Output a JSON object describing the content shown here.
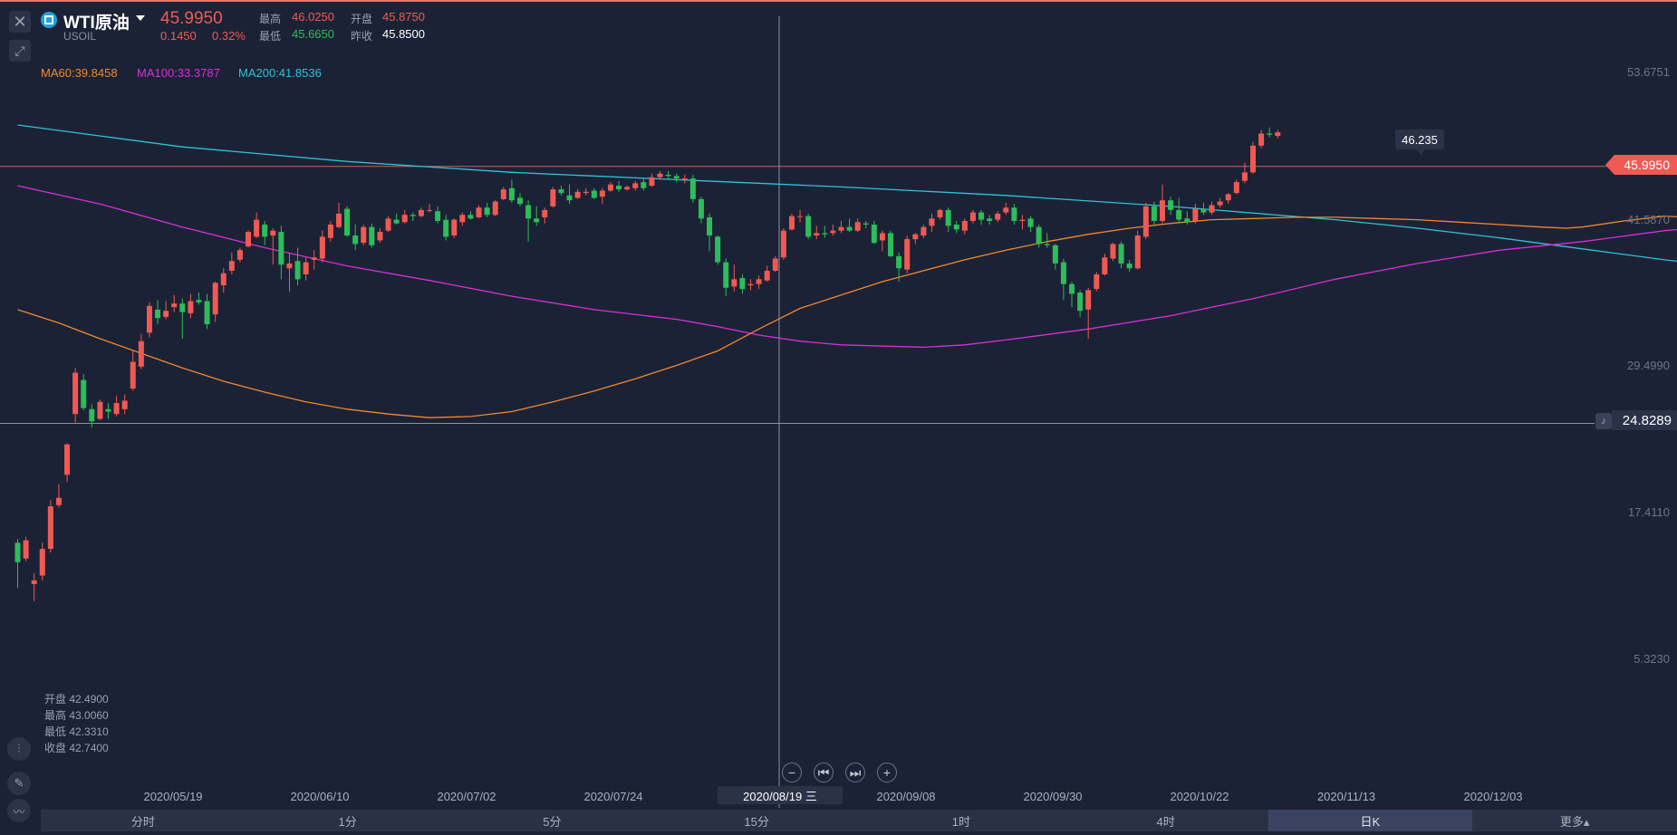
{
  "header": {
    "symbol_name": "WTI原油",
    "symbol_code": "USOIL",
    "price": "45.9950",
    "change": "0.1450",
    "change_pct": "0.32%",
    "high_label": "最高",
    "high_value": "46.0250",
    "open_label": "开盘",
    "open_value": "45.8750",
    "low_label": "最低",
    "low_value": "45.6650",
    "prev_close_label": "昨收",
    "prev_close_value": "45.8500"
  },
  "ma_legend": [
    {
      "text": "MA60:39.8458",
      "color": "#f0882f"
    },
    {
      "text": "MA100:33.3787",
      "color": "#d630d6"
    },
    {
      "text": "MA200:41.8536",
      "color": "#2fc2d6"
    }
  ],
  "ohlc_panel": {
    "open": "开盘 42.4900",
    "high": "最高 43.0060",
    "low": "最低 42.3310",
    "close": "收盘 42.7400"
  },
  "crosshair": {
    "date": "2020/08/19 三",
    "price": "24.8289"
  },
  "last_price_tag": "45.9950",
  "high_marker": "46.235",
  "periods": [
    {
      "label": "分时",
      "active": false
    },
    {
      "label": "1分",
      "active": false
    },
    {
      "label": "5分",
      "active": false
    },
    {
      "label": "15分",
      "active": false
    },
    {
      "label": "1时",
      "active": false
    },
    {
      "label": "4时",
      "active": false
    },
    {
      "label": "日K",
      "active": true
    },
    {
      "label": "更多▴",
      "active": false
    }
  ],
  "colors": {
    "up": "#ef5a53",
    "down": "#2dbd5a",
    "background": "#1c2235"
  },
  "icons": [
    "close-icon",
    "expand-icon",
    "symbol-icon",
    "caret-down-icon",
    "bell-icon",
    "zoom-out-icon",
    "step-back-icon",
    "step-forward-icon",
    "zoom-in-icon",
    "indicator-icon",
    "pencil-icon",
    "chart-type-icon"
  ],
  "chart_data": {
    "type": "candlestick",
    "y_ticks": [
      "53.6751",
      "41.5870",
      "29.4990",
      "17.4110",
      "5.3230"
    ],
    "ylim": [
      0.5,
      59.0
    ],
    "x_ticks": [
      "2020/05/19",
      "2020/06/10",
      "2020/07/02",
      "2020/07/24",
      "2020/09/08",
      "2020/09/30",
      "2020/10/22",
      "2020/11/13",
      "2020/12/03"
    ],
    "candles": [
      [
        15.0,
        13.4,
        15.3,
        11.3
      ],
      [
        13.7,
        15.2,
        15.5,
        13.5
      ],
      [
        11.6,
        11.9,
        12.5,
        10.2
      ],
      [
        12.3,
        14.5,
        15.0,
        11.9
      ],
      [
        14.5,
        18.0,
        18.5,
        14.2
      ],
      [
        18.1,
        18.7,
        19.8,
        17.9
      ],
      [
        20.6,
        23.1,
        23.2,
        20.0
      ],
      [
        25.6,
        29.0,
        29.4,
        24.9
      ],
      [
        28.4,
        26.1,
        28.9,
        25.9
      ],
      [
        26.0,
        25.0,
        26.4,
        24.5
      ],
      [
        25.2,
        26.6,
        26.8,
        25.1
      ],
      [
        26.0,
        25.8,
        26.5,
        25.2
      ],
      [
        25.6,
        26.5,
        27.1,
        25.4
      ],
      [
        26.0,
        26.7,
        27.2,
        25.6
      ],
      [
        27.7,
        29.9,
        30.8,
        27.5
      ],
      [
        29.5,
        31.6,
        32.2,
        29.3
      ],
      [
        32.3,
        34.5,
        34.8,
        31.9
      ],
      [
        34.2,
        33.5,
        35.0,
        33.0
      ],
      [
        33.6,
        34.1,
        34.9,
        33.4
      ],
      [
        34.4,
        34.7,
        35.4,
        34.0
      ],
      [
        34.7,
        34.0,
        35.1,
        31.8
      ],
      [
        33.9,
        34.9,
        35.5,
        33.5
      ],
      [
        35.0,
        34.8,
        35.6,
        34.6
      ],
      [
        34.9,
        33.0,
        35.5,
        32.6
      ],
      [
        33.8,
        36.4,
        36.5,
        33.2
      ],
      [
        36.2,
        37.2,
        37.6,
        35.6
      ],
      [
        37.4,
        38.2,
        38.9,
        37.1
      ],
      [
        38.3,
        39.1,
        39.3,
        38.1
      ],
      [
        39.4,
        40.6,
        40.7,
        39.3
      ],
      [
        40.2,
        41.6,
        42.2,
        40.1
      ],
      [
        41.2,
        40.2,
        41.5,
        39.5
      ],
      [
        40.3,
        40.7,
        40.9,
        37.9
      ],
      [
        40.6,
        37.9,
        41.1,
        36.7
      ],
      [
        37.6,
        38.0,
        38.9,
        35.7
      ],
      [
        38.2,
        36.7,
        39.3,
        36.2
      ],
      [
        37.1,
        38.1,
        38.5,
        36.6
      ],
      [
        38.3,
        38.5,
        39.1,
        37.5
      ],
      [
        38.4,
        40.2,
        40.7,
        38.1
      ],
      [
        40.1,
        41.2,
        41.5,
        39.8
      ],
      [
        41.0,
        42.1,
        43.0,
        40.9
      ],
      [
        42.5,
        40.3,
        42.7,
        40.2
      ],
      [
        40.3,
        39.6,
        41.2,
        39.1
      ],
      [
        39.7,
        41.0,
        41.2,
        39.5
      ],
      [
        41.0,
        39.5,
        41.3,
        39.3
      ],
      [
        39.9,
        40.6,
        40.9,
        39.7
      ],
      [
        40.7,
        41.7,
        41.9,
        40.6
      ],
      [
        41.6,
        41.3,
        42.1,
        41.2
      ],
      [
        41.4,
        42.0,
        42.4,
        41.3
      ],
      [
        42.0,
        41.9,
        42.2,
        41.5
      ],
      [
        41.9,
        42.4,
        42.6,
        41.8
      ],
      [
        42.4,
        42.4,
        42.9,
        42.2
      ],
      [
        42.3,
        41.5,
        42.7,
        41.3
      ],
      [
        41.6,
        40.2,
        42.0,
        39.9
      ],
      [
        40.3,
        41.6,
        41.7,
        40.1
      ],
      [
        41.4,
        42.0,
        42.2,
        41.1
      ],
      [
        42.0,
        41.7,
        42.3,
        41.6
      ],
      [
        41.8,
        42.6,
        42.8,
        41.7
      ],
      [
        42.6,
        42.0,
        43.0,
        41.8
      ],
      [
        42.0,
        43.1,
        43.2,
        41.9
      ],
      [
        43.3,
        44.1,
        44.3,
        43.2
      ],
      [
        44.2,
        43.2,
        44.9,
        43.0
      ],
      [
        43.4,
        42.9,
        43.8,
        42.7
      ],
      [
        42.8,
        41.7,
        43.2,
        39.8
      ],
      [
        41.7,
        41.4,
        42.7,
        41.1
      ],
      [
        41.8,
        42.4,
        42.6,
        41.3
      ],
      [
        42.7,
        44.1,
        44.3,
        42.6
      ],
      [
        44.1,
        43.8,
        44.4,
        43.6
      ],
      [
        43.6,
        43.2,
        44.5,
        42.9
      ],
      [
        43.4,
        43.9,
        44.1,
        43.3
      ],
      [
        43.8,
        43.9,
        44.2,
        43.6
      ],
      [
        44.0,
        43.4,
        44.2,
        43.3
      ],
      [
        43.5,
        44.0,
        44.2,
        42.9
      ],
      [
        44.0,
        44.5,
        44.7,
        43.9
      ],
      [
        44.4,
        44.1,
        44.8,
        43.9
      ],
      [
        44.1,
        44.3,
        44.4,
        44.0
      ],
      [
        44.2,
        44.6,
        44.8,
        44.0
      ],
      [
        44.7,
        44.2,
        45.0,
        44.0
      ],
      [
        44.4,
        45.1,
        45.4,
        44.3
      ],
      [
        45.1,
        45.4,
        45.6,
        44.9
      ],
      [
        45.3,
        45.2,
        45.6,
        44.9
      ],
      [
        45.2,
        45.0,
        45.4,
        44.7
      ],
      [
        44.9,
        45.0,
        45.3,
        44.6
      ],
      [
        45.0,
        43.3,
        45.3,
        43.0
      ],
      [
        43.3,
        41.7,
        43.5,
        41.3
      ],
      [
        41.8,
        40.3,
        42.1,
        39.0
      ],
      [
        40.2,
        38.1,
        40.3,
        37.9
      ],
      [
        38.1,
        36.0,
        38.4,
        35.3
      ],
      [
        36.1,
        36.7,
        37.9,
        35.7
      ],
      [
        36.8,
        35.9,
        37.1,
        35.5
      ],
      [
        36.2,
        36.3,
        36.7,
        35.8
      ],
      [
        36.3,
        36.7,
        37.0,
        35.9
      ],
      [
        36.6,
        37.4,
        37.8,
        36.5
      ],
      [
        37.4,
        38.4,
        38.6,
        37.3
      ],
      [
        38.5,
        40.7,
        40.9,
        38.3
      ],
      [
        40.8,
        41.9,
        42.1,
        40.7
      ],
      [
        41.9,
        41.9,
        42.4,
        41.4
      ],
      [
        41.9,
        40.2,
        42.1,
        40.0
      ],
      [
        40.3,
        40.5,
        41.1,
        40.0
      ],
      [
        40.5,
        40.4,
        41.1,
        40.1
      ],
      [
        40.5,
        40.7,
        41.2,
        40.3
      ],
      [
        40.7,
        41.0,
        41.5,
        40.5
      ],
      [
        41.0,
        40.7,
        41.7,
        40.6
      ],
      [
        40.7,
        41.4,
        41.7,
        40.6
      ],
      [
        41.3,
        41.2,
        41.5,
        40.9
      ],
      [
        41.2,
        39.7,
        41.5,
        39.6
      ],
      [
        39.9,
        40.5,
        40.7,
        39.0
      ],
      [
        40.5,
        38.6,
        40.7,
        38.5
      ],
      [
        38.6,
        37.6,
        38.9,
        36.5
      ],
      [
        37.5,
        40.0,
        40.3,
        37.2
      ],
      [
        40.0,
        40.4,
        40.5,
        39.6
      ],
      [
        40.3,
        41.0,
        41.2,
        40.1
      ],
      [
        41.1,
        41.7,
        42.1,
        40.6
      ],
      [
        41.8,
        42.4,
        42.5,
        41.6
      ],
      [
        42.4,
        41.1,
        42.6,
        40.6
      ],
      [
        41.2,
        40.8,
        41.5,
        40.5
      ],
      [
        40.7,
        41.5,
        41.7,
        40.4
      ],
      [
        41.5,
        42.2,
        42.4,
        41.3
      ],
      [
        42.2,
        41.6,
        42.4,
        41.2
      ],
      [
        41.7,
        41.5,
        42.0,
        41.2
      ],
      [
        41.6,
        42.1,
        42.3,
        41.4
      ],
      [
        42.2,
        42.6,
        43.0,
        42.0
      ],
      [
        42.6,
        41.5,
        42.9,
        41.2
      ],
      [
        41.5,
        41.6,
        42.0,
        40.8
      ],
      [
        41.7,
        41.0,
        41.9,
        40.6
      ],
      [
        41.0,
        39.6,
        41.2,
        39.3
      ],
      [
        39.6,
        39.5,
        40.5,
        39.3
      ],
      [
        39.5,
        38.0,
        39.6,
        37.5
      ],
      [
        38.1,
        36.3,
        38.4,
        35.0
      ],
      [
        36.3,
        35.5,
        36.5,
        34.4
      ],
      [
        35.6,
        34.1,
        35.8,
        33.6
      ],
      [
        34.2,
        35.8,
        36.0,
        31.8
      ],
      [
        35.9,
        37.1,
        37.3,
        35.7
      ],
      [
        37.1,
        38.5,
        38.8,
        37.0
      ],
      [
        38.4,
        39.6,
        39.7,
        38.2
      ],
      [
        39.6,
        38.0,
        39.8,
        37.6
      ],
      [
        38.0,
        37.6,
        38.3,
        37.3
      ],
      [
        37.6,
        40.3,
        40.7,
        37.5
      ],
      [
        40.2,
        42.7,
        43.0,
        40.0
      ],
      [
        42.7,
        41.5,
        43.1,
        41.1
      ],
      [
        41.5,
        43.2,
        44.5,
        41.3
      ],
      [
        43.2,
        42.4,
        43.5,
        42.0
      ],
      [
        42.4,
        41.6,
        43.4,
        41.3
      ],
      [
        41.7,
        41.4,
        42.3,
        41.2
      ],
      [
        41.5,
        42.5,
        42.9,
        41.3
      ],
      [
        42.5,
        42.2,
        43.0,
        42.0
      ],
      [
        42.2,
        42.8,
        43.1,
        42.0
      ],
      [
        42.8,
        43.1,
        43.4,
        42.6
      ],
      [
        43.2,
        43.7,
        43.8,
        42.9
      ],
      [
        43.8,
        44.7,
        44.9,
        43.7
      ],
      [
        44.8,
        45.5,
        46.3,
        44.6
      ],
      [
        45.5,
        47.7,
        48.0,
        45.4
      ],
      [
        47.7,
        48.7,
        49.0,
        47.5
      ],
      [
        48.7,
        48.6,
        49.2,
        48.4
      ],
      [
        48.5,
        48.8,
        49.0,
        48.3
      ]
    ],
    "ma60": [
      [
        0,
        34.2
      ],
      [
        5,
        33.1
      ],
      [
        10,
        31.8
      ],
      [
        15,
        30.6
      ],
      [
        20,
        29.4
      ],
      [
        25,
        28.3
      ],
      [
        30,
        27.4
      ],
      [
        35,
        26.6
      ],
      [
        40,
        26.0
      ],
      [
        45,
        25.6
      ],
      [
        50,
        25.3
      ],
      [
        55,
        25.4
      ],
      [
        60,
        25.8
      ],
      [
        65,
        26.6
      ],
      [
        70,
        27.5
      ],
      [
        75,
        28.5
      ],
      [
        80,
        29.6
      ],
      [
        85,
        30.8
      ],
      [
        90,
        32.6
      ],
      [
        95,
        34.3
      ],
      [
        100,
        35.4
      ],
      [
        105,
        36.5
      ],
      [
        110,
        37.4
      ],
      [
        115,
        38.3
      ],
      [
        120,
        39.1
      ],
      [
        125,
        39.8
      ],
      [
        130,
        40.4
      ],
      [
        135,
        40.9
      ],
      [
        140,
        41.3
      ],
      [
        145,
        41.6
      ],
      [
        150,
        41.7
      ],
      [
        155,
        41.8
      ],
      [
        160,
        41.8
      ],
      [
        165,
        41.7
      ],
      [
        170,
        41.6
      ],
      [
        175,
        41.4
      ],
      [
        180,
        41.2
      ],
      [
        185,
        41.0
      ],
      [
        188,
        40.9
      ],
      [
        190,
        41.0
      ],
      [
        195,
        41.5
      ],
      [
        200,
        41.9
      ],
      [
        205,
        41.7
      ],
      [
        210,
        41.2
      ],
      [
        215,
        41.0
      ],
      [
        220,
        41.2
      ],
      [
        222,
        41.3
      ]
    ],
    "ma100": [
      [
        0,
        44.4
      ],
      [
        10,
        42.9
      ],
      [
        20,
        41.0
      ],
      [
        30,
        39.3
      ],
      [
        40,
        37.8
      ],
      [
        50,
        36.6
      ],
      [
        60,
        35.3
      ],
      [
        70,
        34.2
      ],
      [
        80,
        33.4
      ],
      [
        85,
        32.8
      ],
      [
        90,
        32.1
      ],
      [
        95,
        31.6
      ],
      [
        100,
        31.3
      ],
      [
        110,
        31.1
      ],
      [
        115,
        31.3
      ],
      [
        120,
        31.7
      ],
      [
        130,
        32.6
      ],
      [
        140,
        33.7
      ],
      [
        150,
        35.1
      ],
      [
        160,
        36.7
      ],
      [
        170,
        38.0
      ],
      [
        180,
        39.1
      ],
      [
        190,
        39.8
      ],
      [
        200,
        40.7
      ],
      [
        210,
        41.3
      ],
      [
        215,
        41.6
      ],
      [
        222,
        41.8
      ]
    ],
    "ma200": [
      [
        0,
        49.4
      ],
      [
        10,
        48.5
      ],
      [
        20,
        47.6
      ],
      [
        40,
        46.4
      ],
      [
        60,
        45.5
      ],
      [
        80,
        44.9
      ],
      [
        100,
        44.3
      ],
      [
        120,
        43.6
      ],
      [
        140,
        42.7
      ],
      [
        160,
        41.6
      ],
      [
        170,
        40.9
      ],
      [
        180,
        40.1
      ],
      [
        190,
        39.2
      ],
      [
        200,
        38.3
      ],
      [
        210,
        37.5
      ],
      [
        222,
        36.7
      ]
    ]
  }
}
